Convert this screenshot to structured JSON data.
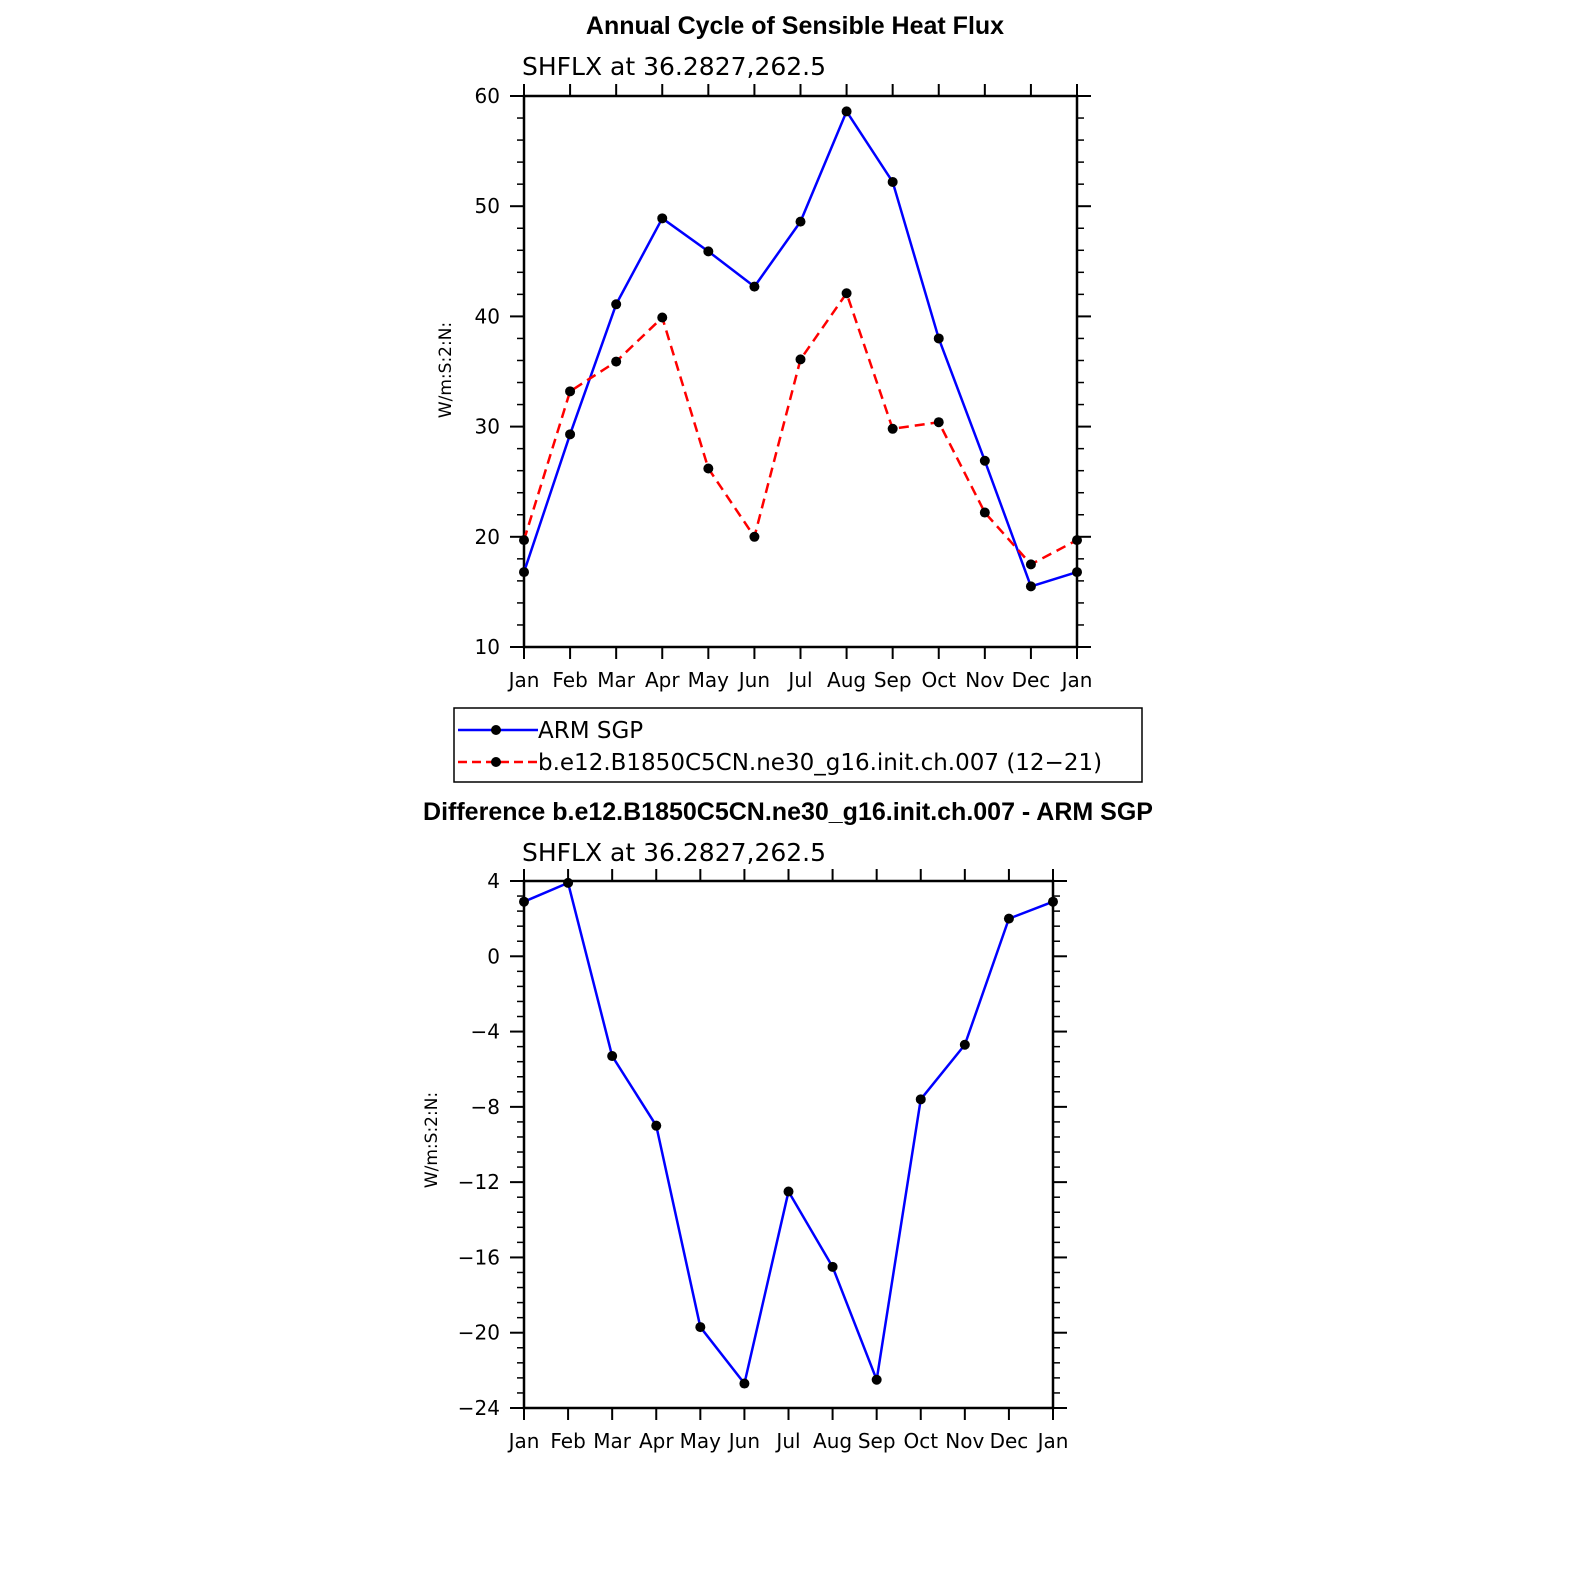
{
  "chart_data": [
    {
      "type": "line",
      "title": "Annual Cycle of Sensible Heat Flux",
      "subtitle": "SHFLX at 36.2827,262.5",
      "ylabel": "W/m:S:2:N:",
      "xlabel": "",
      "categories": [
        "Jan",
        "Feb",
        "Mar",
        "Apr",
        "May",
        "Jun",
        "Jul",
        "Aug",
        "Sep",
        "Oct",
        "Nov",
        "Dec",
        "Jan"
      ],
      "ylim": [
        10,
        60
      ],
      "yticks": [
        10,
        20,
        30,
        40,
        50,
        60
      ],
      "grid": false,
      "legend_position": "bottom",
      "series": [
        {
          "name": "ARM SGP",
          "color": "#0000ff",
          "dash": "solid",
          "values": [
            16.8,
            29.3,
            41.1,
            48.9,
            45.9,
            42.7,
            48.6,
            58.6,
            52.2,
            38.0,
            26.9,
            15.5,
            16.8
          ]
        },
        {
          "name": "b.e12.B1850C5CN.ne30_g16.init.ch.007 (12−21)",
          "color": "#ff0000",
          "dash": "dashed",
          "values": [
            19.7,
            33.2,
            35.9,
            39.9,
            26.2,
            20.0,
            36.1,
            42.1,
            29.8,
            30.4,
            22.2,
            17.5,
            19.7
          ]
        }
      ]
    },
    {
      "type": "line",
      "title": "Difference b.e12.B1850C5CN.ne30_g16.init.ch.007 - ARM SGP",
      "subtitle": "SHFLX at 36.2827,262.5",
      "ylabel": "W/m:S:2:N:",
      "xlabel": "",
      "categories": [
        "Jan",
        "Feb",
        "Mar",
        "Apr",
        "May",
        "Jun",
        "Jul",
        "Aug",
        "Sep",
        "Oct",
        "Nov",
        "Dec",
        "Jan"
      ],
      "ylim": [
        -24,
        4
      ],
      "yticks": [
        -24,
        -20,
        -16,
        -12,
        -8,
        -4,
        0,
        4
      ],
      "grid": false,
      "series": [
        {
          "color": "#0000ff",
          "dash": "solid",
          "values": [
            2.9,
            3.9,
            -5.3,
            -9.0,
            -19.7,
            -22.7,
            -12.5,
            -16.5,
            -22.5,
            -7.6,
            -4.7,
            2.0,
            2.9
          ]
        }
      ]
    }
  ]
}
